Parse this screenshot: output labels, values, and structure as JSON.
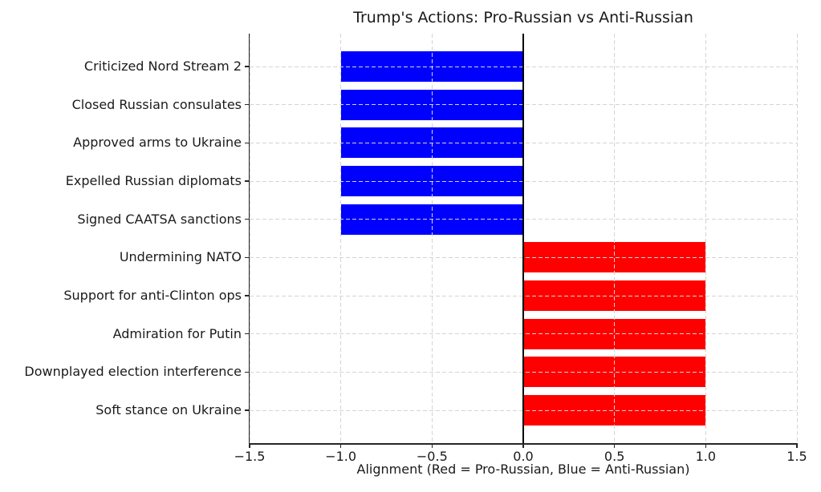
{
  "chart_data": {
    "type": "bar",
    "orientation": "horizontal",
    "title": "Trump's Actions: Pro-Russian vs Anti-Russian",
    "xlabel": "Alignment (Red = Pro-Russian, Blue = Anti-Russian)",
    "categories": [
      "Criticized Nord Stream 2",
      "Closed Russian consulates",
      "Approved arms to Ukraine",
      "Expelled Russian diplomats",
      "Signed CAATSA sanctions",
      "Undermining NATO",
      "Support for anti-Clinton ops",
      "Admiration for Putin",
      "Downplayed election interference",
      "Soft stance on Ukraine"
    ],
    "values": [
      -1.0,
      -1.0,
      -1.0,
      -1.0,
      -1.0,
      1.0,
      1.0,
      1.0,
      1.0,
      1.0
    ],
    "colors": [
      "#0000ff",
      "#0000ff",
      "#0000ff",
      "#0000ff",
      "#0000ff",
      "#ff0000",
      "#ff0000",
      "#ff0000",
      "#ff0000",
      "#ff0000"
    ],
    "color_legend": {
      "negative_blue": "Anti-Russian",
      "positive_red": "Pro-Russian"
    },
    "xlim": [
      -1.5,
      1.5
    ],
    "xticks": [
      -1.5,
      -1.0,
      -0.5,
      0.0,
      0.5,
      1.0,
      1.5
    ],
    "xtick_labels": [
      "−1.5",
      "−1.0",
      "−0.5",
      "0.0",
      "0.5",
      "1.0",
      "1.5"
    ],
    "grid": "dashed",
    "grid_color": "#d4d4d4",
    "zero_line": true,
    "background": "#ffffff"
  }
}
